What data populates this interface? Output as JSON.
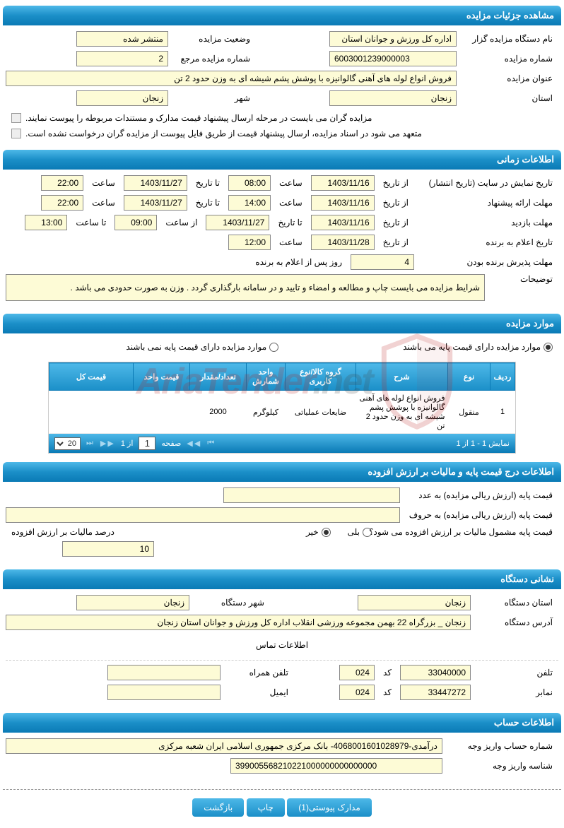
{
  "colors": {
    "header_gradient_start": "#4db8e8",
    "header_gradient_end": "#0a7ab5",
    "field_bg": "#fdfbd6",
    "watermark_red": "#b22222"
  },
  "sections": {
    "details_header": "مشاهده جزئیات مزایده",
    "time_header": "اطلاعات زمانی",
    "items_header": "موارد مزایده",
    "price_header": "اطلاعات درج قیمت پایه و مالیات بر ارزش افزوده",
    "address_header": "نشانی دستگاه",
    "account_header": "اطلاعات حساب"
  },
  "details": {
    "organizer_label": "نام دستگاه مزایده گزار",
    "organizer_value": "اداره کل ورزش و جوانان استان",
    "status_label": "وضعیت مزایده",
    "status_value": "منتشر شده",
    "auction_no_label": "شماره مزایده",
    "auction_no_value": "6003001239000003",
    "ref_no_label": "شماره مزایده مرجع",
    "ref_no_value": "2",
    "title_label": "عنوان مزایده",
    "title_value": "فروش انواع لوله های آهنی گالوانیزه با پوشش پشم شیشه ای به وزن حدود 2 تن",
    "province_label": "استان",
    "province_value": "زنجان",
    "city_label": "شهر",
    "city_value": "زنجان",
    "note1": "مزایده گران می بایست در مرحله ارسال پیشنهاد قیمت مدارک و مستندات مربوطه را پیوست نمایند.",
    "note2": "متعهد می شود در اسناد مزایده، ارسال پیشنهاد قیمت از طریق فایل پیوست از مزایده گران درخواست نشده است."
  },
  "time": {
    "display_label": "تاریخ نمایش در سایت (تاریخ انتشار)",
    "from_label": "از تاریخ",
    "to_label": "تا تاریخ",
    "hour_label": "ساعت",
    "from_hour_label": "از ساعت",
    "to_hour_label": "تا ساعت",
    "display_from_date": "1403/11/16",
    "display_from_hour": "08:00",
    "display_to_date": "1403/11/27",
    "display_to_hour": "22:00",
    "proposal_label": "مهلت ارائه پیشنهاد",
    "proposal_from_date": "1403/11/16",
    "proposal_from_hour": "14:00",
    "proposal_to_date": "1403/11/27",
    "proposal_to_hour": "22:00",
    "visit_label": "مهلت بازدید",
    "visit_from_date": "1403/11/16",
    "visit_to_date": "1403/11/27",
    "visit_from_hour": "09:00",
    "visit_to_hour": "13:00",
    "winner_label": "تاریخ اعلام به برنده",
    "winner_date": "1403/11/28",
    "winner_hour": "12:00",
    "accept_label": "مهلت پذیرش برنده بودن",
    "accept_value": "4",
    "accept_suffix": "روز پس از اعلام به برنده",
    "desc_label": "توضیحات",
    "desc_value": "شرایط مزایده می بایست چاپ و مطالعه و امضاء و تایید و در سامانه بارگذاری گردد . وزن به صورت حدودی می باشد ."
  },
  "items": {
    "radio_has_base": "موارد مزایده دارای قیمت پایه می باشند",
    "radio_no_base": "موارد مزایده دارای قیمت پایه نمی باشند",
    "columns": {
      "row": "ردیف",
      "type": "نوع",
      "desc": "شرح",
      "group": "گروه کالا/نوع کاربری",
      "unit": "واحد شمارش",
      "qty": "تعداد/مقدار",
      "unit_price": "قیمت واحد",
      "total_price": "قیمت کل"
    },
    "rows": [
      {
        "row": "1",
        "type": "منقول",
        "desc": "فروش انواع لوله های آهنی گالوانیزه با پوشش پشم شیشه ای به وزن حدود 2 تن",
        "group": "ضایعات عملیاتی",
        "unit": "کیلوگرم",
        "qty": "2000",
        "unit_price": "",
        "total": ""
      }
    ],
    "pager": {
      "display_text": "نمایش 1 - 1 از 1",
      "page_label": "صفحه",
      "page_value": "1",
      "of_label": "از 1",
      "page_size": "20"
    }
  },
  "price": {
    "base_num_label": "قیمت پایه (ارزش ریالی مزایده) به عدد",
    "base_txt_label": "قیمت پایه (ارزش ریالی مزایده) به حروف",
    "vat_question": "قیمت پایه مشمول مالیات بر ارزش افزوده می شود؟",
    "yes": "بلی",
    "no": "خیر",
    "vat_percent_label": "درصد مالیات بر ارزش افزوده",
    "vat_percent_value": "10"
  },
  "address": {
    "province_label": "استان دستگاه",
    "province_value": "زنجان",
    "city_label": "شهر دستگاه",
    "city_value": "زنجان",
    "addr_label": "آدرس دستگاه",
    "addr_value": "زنجان _ بزرگراه 22 بهمن مجموعه ورزشی انقلاب  اداره کل ورزش و جوانان استان زنجان",
    "contact_title": "اطلاعات تماس",
    "phone_label": "تلفن",
    "phone_value": "33040000",
    "code_label": "کد",
    "phone_code": "024",
    "mobile_label": "تلفن همراه",
    "fax_label": "نمابر",
    "fax_value": "33447272",
    "fax_code": "024",
    "email_label": "ایمیل"
  },
  "account": {
    "acc_no_label": "شماره حساب واریز وجه",
    "acc_no_value": "درآمدی-4068001601028979- بانک مرکزی جمهوری اسلامی ایران شعبه مرکزی",
    "dep_id_label": "شناسه واریز وجه",
    "dep_id_value": "399005568210221000000000000000"
  },
  "buttons": {
    "attachments": "مدارک پیوستی(1)",
    "print": "چاپ",
    "back": "بازگشت"
  },
  "watermark": {
    "text1": "AriaTender",
    "text2": ".net"
  }
}
